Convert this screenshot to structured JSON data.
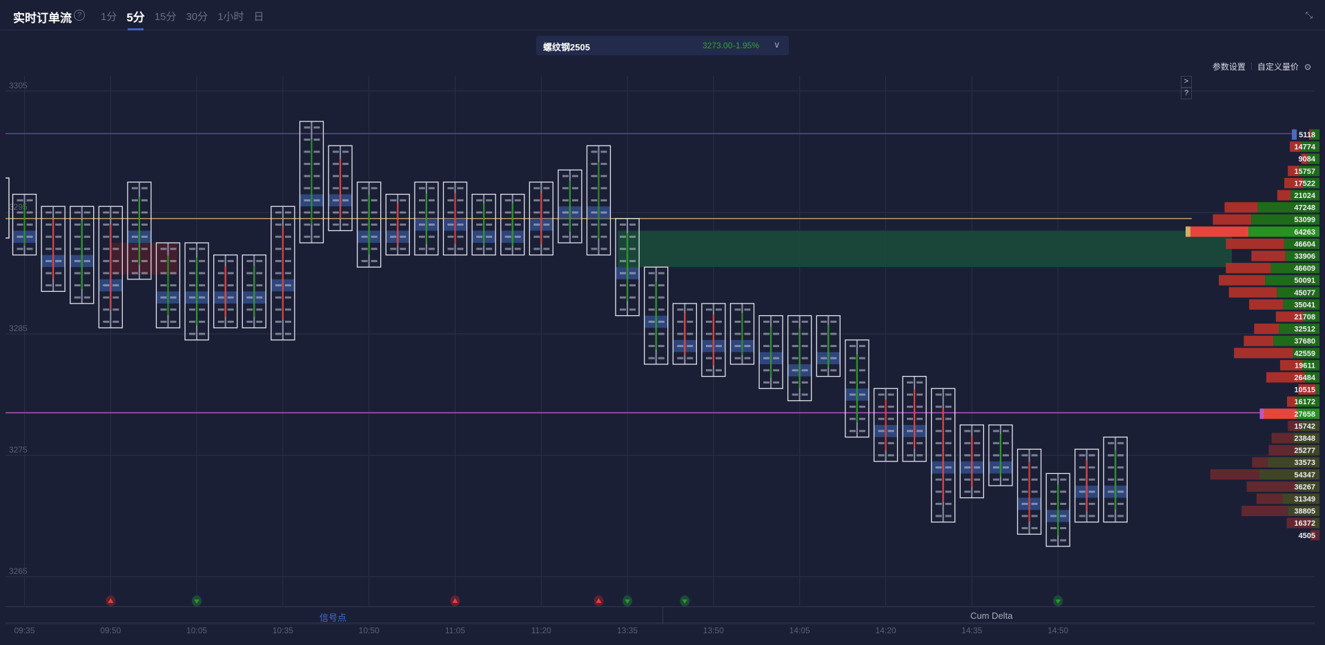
{
  "header": {
    "title": "实时订单流",
    "help_icon": "question-circle-icon",
    "tabs": [
      "1分",
      "5分",
      "15分",
      "30分",
      "1小时",
      "日"
    ],
    "active_tab": "5分",
    "collapse_icon": "collapse-arrows-icon"
  },
  "symbol": {
    "name": "螺纹钢2505",
    "price": "3273.00",
    "change": "-1.95%",
    "chevron": "∨"
  },
  "links": {
    "params": "参数设置",
    "custom": "自定义量价",
    "custom_icon": "⊙"
  },
  "side_buttons": {
    "expand": ">",
    "help": "?"
  },
  "colors": {
    "bg": "#1b1f36",
    "buy": "#1f6b1a",
    "sell": "#a8302a",
    "buy_dim": "#404525",
    "sell_dim": "#62282f",
    "up": "#2a9a22",
    "down": "#e8413a",
    "poc_line": "#b8a35a",
    "high_line": "#3a5aa8",
    "va_line": "#b05ab8",
    "green_band": "#1a4a3a"
  },
  "price_axis": [
    "3305",
    "3295",
    "3285",
    "3275",
    "3265"
  ],
  "time_axis": [
    "09:35",
    "09:50",
    "10:05",
    "10:35",
    "10:50",
    "11:05",
    "11:20",
    "13:35",
    "13:50",
    "14:05",
    "14:20",
    "14:35",
    "14:50"
  ],
  "candles": [
    {
      "high": 3296,
      "low": 3292,
      "dir": "up"
    },
    {
      "high": 3295,
      "low": 3289,
      "dir": "down"
    },
    {
      "high": 3295,
      "low": 3288,
      "dir": "up"
    },
    {
      "high": 3295,
      "low": 3286,
      "dir": "down"
    },
    {
      "high": 3297,
      "low": 3290,
      "dir": "up"
    },
    {
      "high": 3292,
      "low": 3286,
      "dir": "up"
    },
    {
      "high": 3292,
      "low": 3285,
      "dir": "up"
    },
    {
      "high": 3291,
      "low": 3286,
      "dir": "down"
    },
    {
      "high": 3291,
      "low": 3286,
      "dir": "up"
    },
    {
      "high": 3295,
      "low": 3285,
      "dir": "down"
    },
    {
      "high": 3302,
      "low": 3293,
      "dir": "up"
    },
    {
      "high": 3300,
      "low": 3294,
      "dir": "down"
    },
    {
      "high": 3297,
      "low": 3291,
      "dir": "up"
    },
    {
      "high": 3296,
      "low": 3292,
      "dir": "down"
    },
    {
      "high": 3297,
      "low": 3292,
      "dir": "up"
    },
    {
      "high": 3297,
      "low": 3292,
      "dir": "down"
    },
    {
      "high": 3296,
      "low": 3292,
      "dir": "up"
    },
    {
      "high": 3296,
      "low": 3292,
      "dir": "up"
    },
    {
      "high": 3297,
      "low": 3292,
      "dir": "down"
    },
    {
      "high": 3298,
      "low": 3293,
      "dir": "up"
    },
    {
      "high": 3300,
      "low": 3292,
      "dir": "up"
    },
    {
      "high": 3294,
      "low": 3287,
      "dir": "up"
    },
    {
      "high": 3290,
      "low": 3283,
      "dir": "up"
    },
    {
      "high": 3287,
      "low": 3283,
      "dir": "down"
    },
    {
      "high": 3287,
      "low": 3282,
      "dir": "down"
    },
    {
      "high": 3287,
      "low": 3283,
      "dir": "up"
    },
    {
      "high": 3286,
      "low": 3281,
      "dir": "up"
    },
    {
      "high": 3286,
      "low": 3280,
      "dir": "up"
    },
    {
      "high": 3286,
      "low": 3282,
      "dir": "up"
    },
    {
      "high": 3284,
      "low": 3277,
      "dir": "up"
    },
    {
      "high": 3280,
      "low": 3275,
      "dir": "down"
    },
    {
      "high": 3281,
      "low": 3275,
      "dir": "down"
    },
    {
      "high": 3280,
      "low": 3270,
      "dir": "down"
    },
    {
      "high": 3277,
      "low": 3272,
      "dir": "down"
    },
    {
      "high": 3277,
      "low": 3273,
      "dir": "up"
    },
    {
      "high": 3275,
      "low": 3269,
      "dir": "down"
    },
    {
      "high": 3273,
      "low": 3268,
      "dir": "up"
    },
    {
      "high": 3275,
      "low": 3270,
      "dir": "down"
    },
    {
      "high": 3276,
      "low": 3270,
      "dir": "up"
    }
  ],
  "signals": [
    {
      "time": "09:50",
      "type": "sell"
    },
    {
      "time": "10:05",
      "type": "buy"
    },
    {
      "time": "11:05",
      "type": "sell"
    },
    {
      "time": "13:20",
      "type": "sell"
    },
    {
      "time": "13:35",
      "type": "buy"
    },
    {
      "time": "13:45",
      "type": "buy"
    },
    {
      "time": "14:50",
      "type": "buy"
    }
  ],
  "volume_profile": [
    {
      "vol": "5118",
      "buy": 0.8
    },
    {
      "vol": "14774",
      "buy": 0.63
    },
    {
      "vol": "9084",
      "buy": 0.65
    },
    {
      "vol": "15757",
      "buy": 0.65
    },
    {
      "vol": "17522",
      "buy": 0.45
    },
    {
      "vol": "21024",
      "buy": 0.68
    },
    {
      "vol": "47248",
      "buy": 0.65
    },
    {
      "vol": "53099",
      "buy": 0.64
    },
    {
      "vol": "64263",
      "buy": 0.55,
      "mark": "poc"
    },
    {
      "vol": "46604",
      "buy": 0.38
    },
    {
      "vol": "33906",
      "buy": 0.5
    },
    {
      "vol": "46609",
      "buy": 0.52
    },
    {
      "vol": "50091",
      "buy": 0.54
    },
    {
      "vol": "45077",
      "buy": 0.47
    },
    {
      "vol": "35041",
      "buy": 0.52
    },
    {
      "vol": "21708",
      "buy": 0.37
    },
    {
      "vol": "32512",
      "buy": 0.62
    },
    {
      "vol": "37680",
      "buy": 0.61
    },
    {
      "vol": "42559",
      "buy": 0.31
    },
    {
      "vol": "19611",
      "buy": 0.44
    },
    {
      "vol": "26484",
      "buy": 0.27
    },
    {
      "vol": "10515",
      "buy": 0.17
    },
    {
      "vol": "16172",
      "buy": 0.7
    },
    {
      "vol": "27658",
      "buy": 0.4,
      "mark": "va"
    },
    {
      "vol": "15742",
      "buy": 0.61
    },
    {
      "vol": "23848",
      "buy": 0.55
    },
    {
      "vol": "25277",
      "buy": 0.44
    },
    {
      "vol": "33573",
      "buy": 0.77
    },
    {
      "vol": "54347",
      "buy": 0.55
    },
    {
      "vol": "36267",
      "buy": 0.32
    },
    {
      "vol": "31349",
      "buy": 0.59
    },
    {
      "vol": "38805",
      "buy": 0.41
    },
    {
      "vol": "16372",
      "buy": 0.22
    },
    {
      "vol": "4505",
      "buy": 0
    }
  ],
  "panel_tabs": {
    "signals": "信号点",
    "cum_delta": "Cum Delta"
  }
}
